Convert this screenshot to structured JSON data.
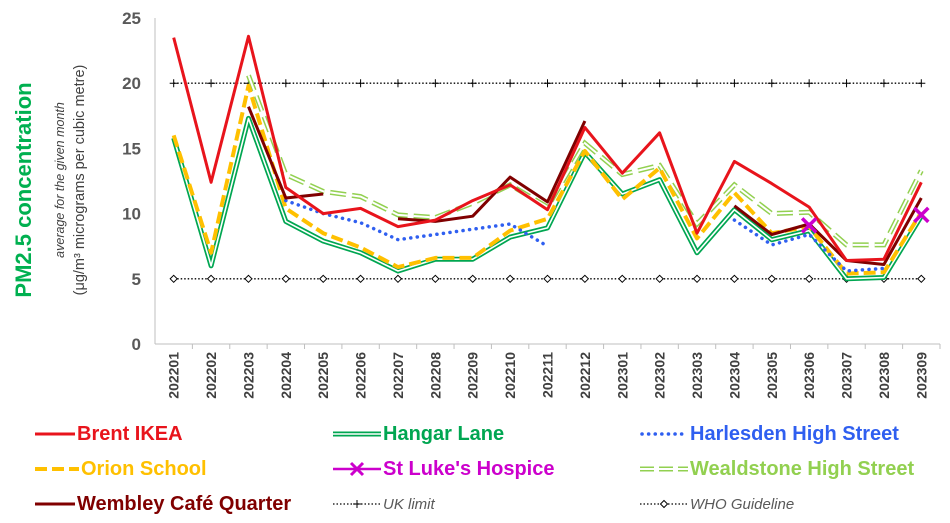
{
  "chart_data": {
    "type": "line",
    "ylabel": "PM2.5 concentration",
    "ylabel_sub": "average for the given month",
    "ylabel_unit": "(μg/m³ micrograms per cubic metre)",
    "ylim": [
      0,
      25
    ],
    "yticks": [
      "0",
      "5",
      "10",
      "15",
      "20",
      "25"
    ],
    "categories": [
      "202201",
      "202202",
      "202203",
      "202204",
      "202205",
      "202206",
      "202207",
      "202208",
      "202209",
      "202210",
      "202211",
      "202212",
      "202301",
      "202302",
      "202303",
      "202304",
      "202305",
      "202306",
      "202307",
      "202308",
      "202309"
    ],
    "grid": false,
    "legend_position": "bottom",
    "series": [
      {
        "name": "Brent IKEA",
        "color": "#e8141c",
        "style": "solid",
        "values": [
          23.5,
          12.4,
          23.6,
          12.0,
          10.0,
          10.4,
          9.0,
          9.5,
          11.0,
          12.2,
          10.3,
          16.6,
          13.1,
          16.2,
          8.5,
          14.0,
          12.3,
          10.5,
          6.4,
          6.5,
          12.4
        ]
      },
      {
        "name": "Hangar Lane",
        "color": "#00a651",
        "style": "double",
        "values": [
          15.8,
          6.0,
          17.3,
          9.4,
          7.9,
          7.0,
          5.6,
          6.5,
          6.5,
          8.2,
          8.9,
          14.7,
          11.5,
          12.6,
          7.0,
          10.3,
          8.0,
          8.7,
          5.0,
          5.1,
          9.8
        ]
      },
      {
        "name": "Harlesden High Street",
        "color": "#2f5ff0",
        "style": "dotted",
        "values": [
          null,
          null,
          null,
          11.0,
          10.0,
          9.3,
          8.0,
          8.4,
          8.8,
          9.2,
          7.5,
          null,
          null,
          null,
          null,
          9.5,
          7.6,
          8.4,
          5.6,
          5.8,
          null
        ]
      },
      {
        "name": "Orion School",
        "color": "#ffc000",
        "style": "dashed",
        "values": [
          16.0,
          7.0,
          19.8,
          10.4,
          8.5,
          7.4,
          5.9,
          6.6,
          6.6,
          8.7,
          9.6,
          14.8,
          11.1,
          13.5,
          8.1,
          11.6,
          8.5,
          9.0,
          5.4,
          5.5,
          10.1
        ]
      },
      {
        "name": "St Luke's Hospice",
        "color": "#cc00cc",
        "style": "cross",
        "values": [
          null,
          null,
          null,
          null,
          null,
          null,
          null,
          null,
          null,
          null,
          null,
          null,
          null,
          null,
          null,
          null,
          null,
          9.1,
          null,
          null,
          9.9
        ]
      },
      {
        "name": "Wealdstone High Street",
        "color": "#92d050",
        "style": "hollow-dash",
        "values": [
          null,
          null,
          20.6,
          13.0,
          11.7,
          11.3,
          9.9,
          9.7,
          10.8,
          12.2,
          10.5,
          15.4,
          13.0,
          13.7,
          9.2,
          12.2,
          10.0,
          10.1,
          7.6,
          7.6,
          13.3
        ]
      },
      {
        "name": "Wembley Café Quarter",
        "color": "#800000",
        "style": "solid",
        "values": [
          null,
          null,
          18.2,
          11.2,
          11.5,
          null,
          9.6,
          9.4,
          9.8,
          12.8,
          10.9,
          17.1,
          null,
          null,
          null,
          10.6,
          8.4,
          9.2,
          6.4,
          6.1,
          11.2
        ]
      },
      {
        "name": "UK limit",
        "color": "#000000",
        "style": "dotted-plus",
        "values": [
          20,
          20,
          20,
          20,
          20,
          20,
          20,
          20,
          20,
          20,
          20,
          20,
          20,
          20,
          20,
          20,
          20,
          20,
          20,
          20,
          20
        ]
      },
      {
        "name": "WHO Guideline",
        "color": "#000000",
        "style": "dotted-diamond",
        "values": [
          5,
          5,
          5,
          5,
          5,
          5,
          5,
          5,
          5,
          5,
          5,
          5,
          5,
          5,
          5,
          5,
          5,
          5,
          5,
          5,
          5
        ]
      }
    ]
  }
}
